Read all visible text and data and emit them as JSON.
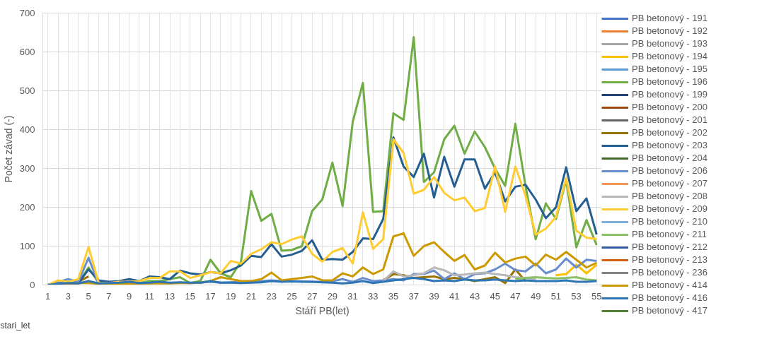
{
  "chart_data": {
    "type": "line",
    "xlabel": "Stáří PB(let)",
    "ylabel": "Počet závad (-)",
    "annotations": [
      "stari_let"
    ],
    "x": [
      1,
      2,
      3,
      4,
      5,
      6,
      7,
      8,
      9,
      10,
      11,
      12,
      13,
      14,
      15,
      16,
      17,
      18,
      19,
      20,
      21,
      22,
      23,
      24,
      25,
      26,
      27,
      28,
      29,
      30,
      31,
      32,
      33,
      34,
      35,
      36,
      37,
      38,
      39,
      40,
      41,
      42,
      43,
      44,
      45,
      46,
      47,
      48,
      49,
      50,
      51,
      52,
      53,
      54,
      55
    ],
    "xlim": [
      0.5,
      55.5
    ],
    "ylim": [
      0,
      700
    ],
    "yticks": [
      0,
      100,
      200,
      300,
      400,
      500,
      600,
      700
    ],
    "xticks": [
      1,
      {
        "value": 2,
        "label": null
      },
      3,
      {
        "value": 4,
        "label": null
      },
      5,
      {
        "value": 6,
        "label": null
      },
      7,
      {
        "value": 8,
        "label": null
      },
      9,
      {
        "value": 10,
        "label": null
      },
      11,
      {
        "value": 12,
        "label": null
      },
      13,
      {
        "value": 14,
        "label": null
      },
      15,
      {
        "value": 16,
        "label": null
      },
      17,
      {
        "value": 18,
        "label": null
      },
      19,
      {
        "value": 20,
        "label": null
      },
      21,
      {
        "value": 22,
        "label": null
      },
      23,
      {
        "value": 24,
        "label": null
      },
      25,
      {
        "value": 26,
        "label": null
      },
      27,
      {
        "value": 28,
        "label": null
      },
      29,
      {
        "value": 30,
        "label": null
      },
      31,
      {
        "value": 32,
        "label": null
      },
      33,
      {
        "value": 34,
        "label": null
      },
      35,
      {
        "value": 36,
        "label": null
      },
      37,
      {
        "value": 38,
        "label": null
      },
      39,
      {
        "value": 40,
        "label": null
      },
      41,
      {
        "value": 42,
        "label": null
      },
      43,
      {
        "value": 44,
        "label": null
      },
      45,
      {
        "value": 46,
        "label": null
      },
      47,
      {
        "value": 48,
        "label": null
      },
      49,
      {
        "value": 50,
        "label": null
      },
      51,
      {
        "value": 52,
        "label": null
      },
      53,
      {
        "value": 54,
        "label": null
      },
      55
    ],
    "grid": true,
    "legend": "right",
    "marker": "none",
    "line_style": "solid",
    "series": [
      {
        "name": "PB betonový - 191",
        "color": "#4472c4",
        "values": [
          null,
          null,
          null,
          null,
          null,
          null,
          null,
          null,
          null,
          null,
          null,
          null,
          null,
          null,
          null,
          null,
          null,
          null,
          null,
          null,
          null,
          null,
          null,
          null,
          null,
          null,
          null,
          null,
          null,
          null,
          null,
          null,
          null,
          null,
          null,
          null,
          null,
          null,
          null,
          null,
          null,
          null,
          null,
          null,
          null,
          null,
          null,
          null,
          null,
          null,
          null,
          null,
          null,
          null,
          null
        ]
      },
      {
        "name": "PB betonový - 192",
        "color": "#ed7d31",
        "values": [
          null,
          null,
          null,
          null,
          null,
          null,
          null,
          null,
          null,
          null,
          null,
          null,
          null,
          null,
          null,
          null,
          null,
          null,
          null,
          null,
          null,
          null,
          null,
          null,
          null,
          null,
          null,
          null,
          null,
          null,
          null,
          null,
          null,
          null,
          null,
          null,
          null,
          null,
          null,
          null,
          null,
          null,
          null,
          null,
          null,
          null,
          null,
          null,
          null,
          null,
          null,
          null,
          null,
          null,
          null
        ]
      },
      {
        "name": "PB betonový - 193",
        "color": "#a5a5a5",
        "values": [
          null,
          null,
          null,
          null,
          null,
          null,
          null,
          null,
          null,
          null,
          null,
          null,
          null,
          null,
          null,
          null,
          null,
          null,
          null,
          null,
          null,
          null,
          null,
          null,
          null,
          null,
          null,
          null,
          null,
          null,
          null,
          null,
          null,
          null,
          null,
          null,
          null,
          null,
          null,
          null,
          null,
          null,
          null,
          null,
          null,
          null,
          null,
          null,
          null,
          null,
          null,
          null,
          null,
          null,
          null
        ]
      },
      {
        "name": "PB betonový - 194",
        "color": "#ffc000",
        "values": [
          null,
          null,
          null,
          null,
          null,
          null,
          null,
          null,
          null,
          null,
          null,
          null,
          null,
          null,
          null,
          null,
          null,
          null,
          null,
          null,
          null,
          null,
          null,
          null,
          null,
          null,
          null,
          null,
          null,
          null,
          null,
          null,
          null,
          null,
          null,
          null,
          null,
          null,
          null,
          null,
          null,
          null,
          null,
          null,
          null,
          null,
          null,
          null,
          null,
          null,
          25,
          28,
          52,
          30,
          52
        ]
      },
      {
        "name": "PB betonový - 195",
        "color": "#5b9bd5",
        "values": [
          null,
          null,
          null,
          null,
          null,
          null,
          null,
          null,
          null,
          null,
          null,
          null,
          null,
          null,
          null,
          null,
          null,
          null,
          null,
          null,
          null,
          null,
          null,
          null,
          null,
          null,
          null,
          null,
          null,
          null,
          null,
          null,
          null,
          null,
          null,
          null,
          null,
          null,
          null,
          null,
          null,
          null,
          null,
          null,
          null,
          null,
          null,
          null,
          null,
          null,
          null,
          null,
          null,
          null,
          null
        ]
      },
      {
        "name": "PB betonový - 196",
        "color": "#70ad47",
        "values": [
          0,
          5,
          3,
          5,
          45,
          5,
          5,
          5,
          5,
          5,
          10,
          10,
          15,
          20,
          5,
          10,
          65,
          30,
          20,
          60,
          242,
          165,
          183,
          88,
          90,
          100,
          190,
          220,
          315,
          203,
          420,
          520,
          188,
          190,
          442,
          425,
          638,
          265,
          290,
          375,
          410,
          338,
          395,
          355,
          300,
          255,
          415,
          255,
          118,
          210,
          170,
          270,
          97,
          167,
          103
        ]
      },
      {
        "name": "PB betonový - 199",
        "color": "#264478",
        "values": [
          null,
          null,
          null,
          null,
          null,
          null,
          null,
          null,
          null,
          null,
          null,
          null,
          null,
          null,
          null,
          null,
          null,
          null,
          null,
          null,
          null,
          null,
          null,
          null,
          null,
          null,
          null,
          null,
          null,
          null,
          null,
          null,
          null,
          null,
          null,
          null,
          null,
          null,
          null,
          null,
          null,
          null,
          null,
          null,
          null,
          null,
          null,
          null,
          null,
          null,
          null,
          null,
          null,
          null,
          null
        ]
      },
      {
        "name": "PB betonový - 200",
        "color": "#9e480e",
        "values": [
          null,
          null,
          null,
          null,
          null,
          null,
          null,
          null,
          null,
          null,
          null,
          null,
          null,
          null,
          null,
          null,
          null,
          null,
          null,
          null,
          null,
          null,
          null,
          null,
          null,
          null,
          null,
          null,
          null,
          null,
          null,
          null,
          null,
          null,
          null,
          null,
          null,
          null,
          null,
          null,
          null,
          null,
          null,
          null,
          null,
          null,
          null,
          null,
          null,
          null,
          null,
          null,
          null,
          null,
          null
        ]
      },
      {
        "name": "PB betonový - 201",
        "color": "#636363",
        "values": [
          null,
          null,
          null,
          null,
          null,
          null,
          null,
          null,
          null,
          null,
          null,
          null,
          null,
          null,
          null,
          null,
          null,
          null,
          null,
          null,
          null,
          null,
          null,
          null,
          null,
          null,
          null,
          null,
          null,
          null,
          null,
          null,
          null,
          null,
          null,
          null,
          null,
          null,
          null,
          null,
          null,
          null,
          null,
          null,
          null,
          null,
          null,
          null,
          null,
          null,
          null,
          null,
          null,
          null,
          null
        ]
      },
      {
        "name": "PB betonový - 202",
        "color": "#997300",
        "values": [
          null,
          null,
          null,
          8,
          22,
          null,
          null,
          null,
          null,
          null,
          null,
          null,
          null,
          null,
          null,
          null,
          null,
          null,
          null,
          null,
          null,
          null,
          null,
          null,
          null,
          null,
          null,
          null,
          null,
          null,
          null,
          null,
          null,
          12,
          28,
          25,
          18,
          20,
          22,
          15,
          18,
          15,
          10,
          15,
          20,
          5,
          40,
          10,
          null,
          null,
          null,
          null,
          null,
          null,
          null
        ]
      },
      {
        "name": "PB betonový - 203",
        "color": "#255e91",
        "values": [
          0,
          5,
          5,
          5,
          40,
          12,
          8,
          10,
          15,
          10,
          22,
          20,
          15,
          37,
          30,
          27,
          33,
          30,
          38,
          50,
          75,
          72,
          105,
          73,
          78,
          88,
          115,
          65,
          67,
          65,
          85,
          120,
          118,
          170,
          380,
          305,
          278,
          338,
          225,
          330,
          253,
          323,
          323,
          248,
          290,
          215,
          253,
          258,
          220,
          172,
          200,
          303,
          190,
          223,
          130
        ]
      },
      {
        "name": "PB betonový - 204",
        "color": "#43682b",
        "values": [
          null,
          null,
          null,
          null,
          null,
          null,
          null,
          null,
          null,
          null,
          null,
          null,
          null,
          null,
          null,
          null,
          null,
          null,
          null,
          null,
          null,
          null,
          null,
          null,
          null,
          null,
          null,
          null,
          null,
          null,
          null,
          null,
          null,
          null,
          null,
          null,
          null,
          null,
          null,
          null,
          null,
          null,
          null,
          null,
          null,
          null,
          null,
          null,
          null,
          null,
          null,
          null,
          null,
          null,
          null
        ]
      },
      {
        "name": "PB betonový - 206",
        "color": "#698ed0",
        "values": [
          0,
          8,
          15,
          8,
          70,
          3,
          3,
          4,
          5,
          4,
          5,
          6,
          5,
          6,
          5,
          6,
          8,
          6,
          7,
          8,
          10,
          10,
          12,
          10,
          10,
          9,
          8,
          8,
          10,
          15,
          8,
          18,
          10,
          12,
          15,
          12,
          28,
          28,
          37,
          15,
          30,
          15,
          28,
          30,
          40,
          55,
          38,
          35,
          55,
          30,
          40,
          68,
          45,
          65,
          62
        ]
      },
      {
        "name": "PB betonový - 207",
        "color": "#f1975a",
        "values": [
          null,
          null,
          null,
          null,
          null,
          null,
          null,
          null,
          null,
          null,
          null,
          null,
          null,
          null,
          null,
          null,
          null,
          null,
          null,
          null,
          null,
          null,
          null,
          null,
          null,
          null,
          null,
          null,
          null,
          null,
          null,
          null,
          null,
          null,
          null,
          null,
          null,
          null,
          null,
          null,
          null,
          null,
          null,
          null,
          null,
          null,
          null,
          null,
          null,
          null,
          null,
          null,
          null,
          null,
          null
        ]
      },
      {
        "name": "PB betonový - 208",
        "color": "#b7b7b7",
        "values": [
          null,
          null,
          null,
          null,
          null,
          null,
          null,
          null,
          null,
          null,
          null,
          null,
          null,
          null,
          null,
          null,
          null,
          null,
          null,
          null,
          null,
          null,
          null,
          null,
          null,
          null,
          null,
          null,
          null,
          null,
          null,
          null,
          null,
          10,
          35,
          22,
          25,
          30,
          45,
          38,
          25,
          27,
          30,
          32,
          28,
          25,
          20,
          18,
          15,
          null,
          null,
          null,
          null,
          null,
          null
        ]
      },
      {
        "name": "PB betonový - 209",
        "color": "#ffcd33",
        "values": [
          0,
          12,
          8,
          15,
          98,
          5,
          5,
          8,
          8,
          10,
          18,
          18,
          35,
          35,
          18,
          25,
          33,
          30,
          62,
          55,
          80,
          92,
          110,
          105,
          117,
          125,
          80,
          60,
          85,
          95,
          55,
          187,
          93,
          118,
          375,
          340,
          235,
          245,
          278,
          237,
          218,
          225,
          190,
          198,
          305,
          188,
          305,
          230,
          130,
          145,
          175,
          275,
          140,
          122,
          118
        ]
      },
      {
        "name": "PB betonový - 210",
        "color": "#7cafdd",
        "values": [
          null,
          null,
          null,
          null,
          null,
          null,
          null,
          null,
          null,
          null,
          null,
          null,
          null,
          null,
          null,
          null,
          null,
          null,
          null,
          null,
          null,
          null,
          null,
          null,
          null,
          null,
          null,
          null,
          null,
          null,
          null,
          null,
          null,
          null,
          null,
          null,
          null,
          null,
          null,
          null,
          null,
          null,
          null,
          null,
          null,
          null,
          null,
          null,
          null,
          null,
          null,
          null,
          null,
          null,
          null
        ]
      },
      {
        "name": "PB betonový - 211",
        "color": "#8cc168",
        "values": [
          null,
          null,
          null,
          null,
          null,
          null,
          null,
          null,
          null,
          null,
          null,
          null,
          null,
          null,
          null,
          null,
          null,
          null,
          null,
          null,
          null,
          null,
          null,
          null,
          null,
          null,
          null,
          null,
          null,
          null,
          null,
          null,
          null,
          null,
          null,
          null,
          null,
          null,
          null,
          null,
          null,
          null,
          null,
          null,
          null,
          null,
          15,
          18,
          20,
          18,
          17,
          18,
          20,
          14,
          12
        ]
      },
      {
        "name": "PB betonový - 212",
        "color": "#335aa1",
        "values": [
          null,
          null,
          null,
          null,
          null,
          null,
          null,
          null,
          null,
          null,
          null,
          null,
          null,
          null,
          null,
          null,
          null,
          null,
          null,
          null,
          null,
          null,
          null,
          null,
          null,
          null,
          null,
          null,
          null,
          null,
          null,
          null,
          null,
          null,
          null,
          null,
          null,
          null,
          null,
          null,
          null,
          null,
          null,
          null,
          null,
          null,
          null,
          null,
          null,
          null,
          null,
          null,
          null,
          null,
          null
        ]
      },
      {
        "name": "PB betonový - 213",
        "color": "#d26012",
        "values": [
          null,
          null,
          null,
          null,
          null,
          null,
          null,
          null,
          null,
          null,
          null,
          null,
          null,
          null,
          null,
          null,
          null,
          null,
          null,
          null,
          null,
          null,
          null,
          null,
          null,
          null,
          null,
          null,
          null,
          null,
          null,
          null,
          null,
          null,
          null,
          null,
          null,
          null,
          null,
          null,
          null,
          null,
          null,
          null,
          null,
          null,
          null,
          null,
          null,
          null,
          null,
          null,
          null,
          null,
          null
        ]
      },
      {
        "name": "PB betonový - 236",
        "color": "#848484",
        "values": [
          null,
          null,
          null,
          null,
          null,
          null,
          null,
          null,
          null,
          null,
          null,
          null,
          null,
          null,
          null,
          null,
          null,
          null,
          null,
          null,
          null,
          null,
          null,
          null,
          null,
          null,
          null,
          null,
          null,
          null,
          null,
          null,
          null,
          null,
          null,
          null,
          null,
          null,
          null,
          null,
          null,
          null,
          null,
          null,
          null,
          null,
          null,
          null,
          null,
          null,
          null,
          null,
          null,
          null,
          null
        ]
      },
      {
        "name": "PB betonový - 414",
        "color": "#cc9a00",
        "values": [
          0,
          3,
          3,
          5,
          5,
          3,
          3,
          3,
          3,
          4,
          4,
          4,
          4,
          5,
          5,
          6,
          10,
          20,
          15,
          10,
          10,
          15,
          32,
          12,
          15,
          18,
          22,
          12,
          12,
          30,
          22,
          45,
          28,
          40,
          125,
          133,
          75,
          100,
          110,
          85,
          62,
          77,
          40,
          50,
          83,
          58,
          68,
          73,
          50,
          78,
          65,
          85,
          65,
          45,
          57
        ]
      },
      {
        "name": "PB betonový - 416",
        "color": "#2e75b6",
        "values": [
          0,
          3,
          5,
          4,
          10,
          4,
          5,
          6,
          8,
          5,
          6,
          8,
          6,
          7,
          6,
          6,
          10,
          6,
          6,
          5,
          6,
          7,
          10,
          8,
          9,
          8,
          8,
          7,
          6,
          4,
          6,
          10,
          5,
          8,
          12,
          15,
          18,
          15,
          10,
          12,
          10,
          14,
          12,
          12,
          14,
          12,
          10,
          12,
          10,
          10,
          10,
          12,
          8,
          8,
          10
        ]
      },
      {
        "name": "PB betonový - 417",
        "color": "#548235",
        "values": [
          null,
          null,
          null,
          null,
          null,
          null,
          null,
          null,
          null,
          null,
          null,
          null,
          null,
          null,
          null,
          null,
          null,
          null,
          null,
          null,
          null,
          null,
          null,
          null,
          null,
          null,
          null,
          null,
          null,
          null,
          null,
          null,
          null,
          null,
          null,
          null,
          null,
          null,
          null,
          null,
          null,
          null,
          null,
          null,
          null,
          null,
          null,
          null,
          null,
          null,
          null,
          null,
          null,
          null,
          null
        ]
      }
    ]
  }
}
